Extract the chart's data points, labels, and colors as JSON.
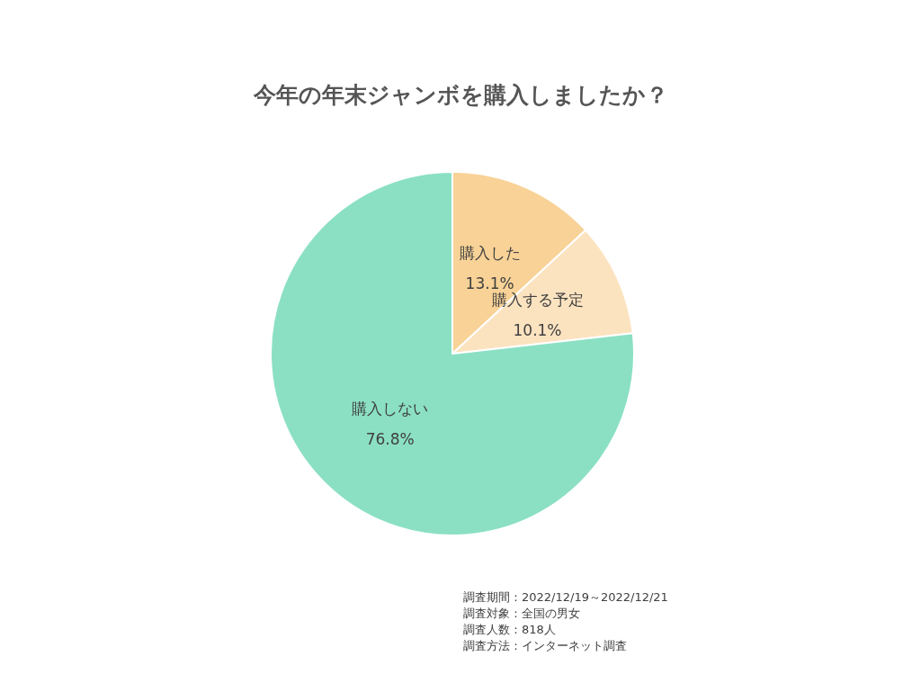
{
  "chart_data": {
    "type": "pie",
    "title": "今年の年末ジャンボを購入しましたか？",
    "categories": [
      "購入した",
      "購入する予定",
      "購入しない"
    ],
    "values": [
      13.1,
      10.1,
      76.8
    ],
    "colors": [
      "#f8d296",
      "#fce3c0",
      "#8be0c3"
    ],
    "value_labels": [
      "13.1%",
      "10.1%",
      "76.8%"
    ],
    "legend": false,
    "annotations": [
      "調査期間：2022/12/19～2022/12/21",
      "調査対象：全国の男女",
      "調査人数：818人",
      "調査方法：インターネット調査"
    ]
  }
}
